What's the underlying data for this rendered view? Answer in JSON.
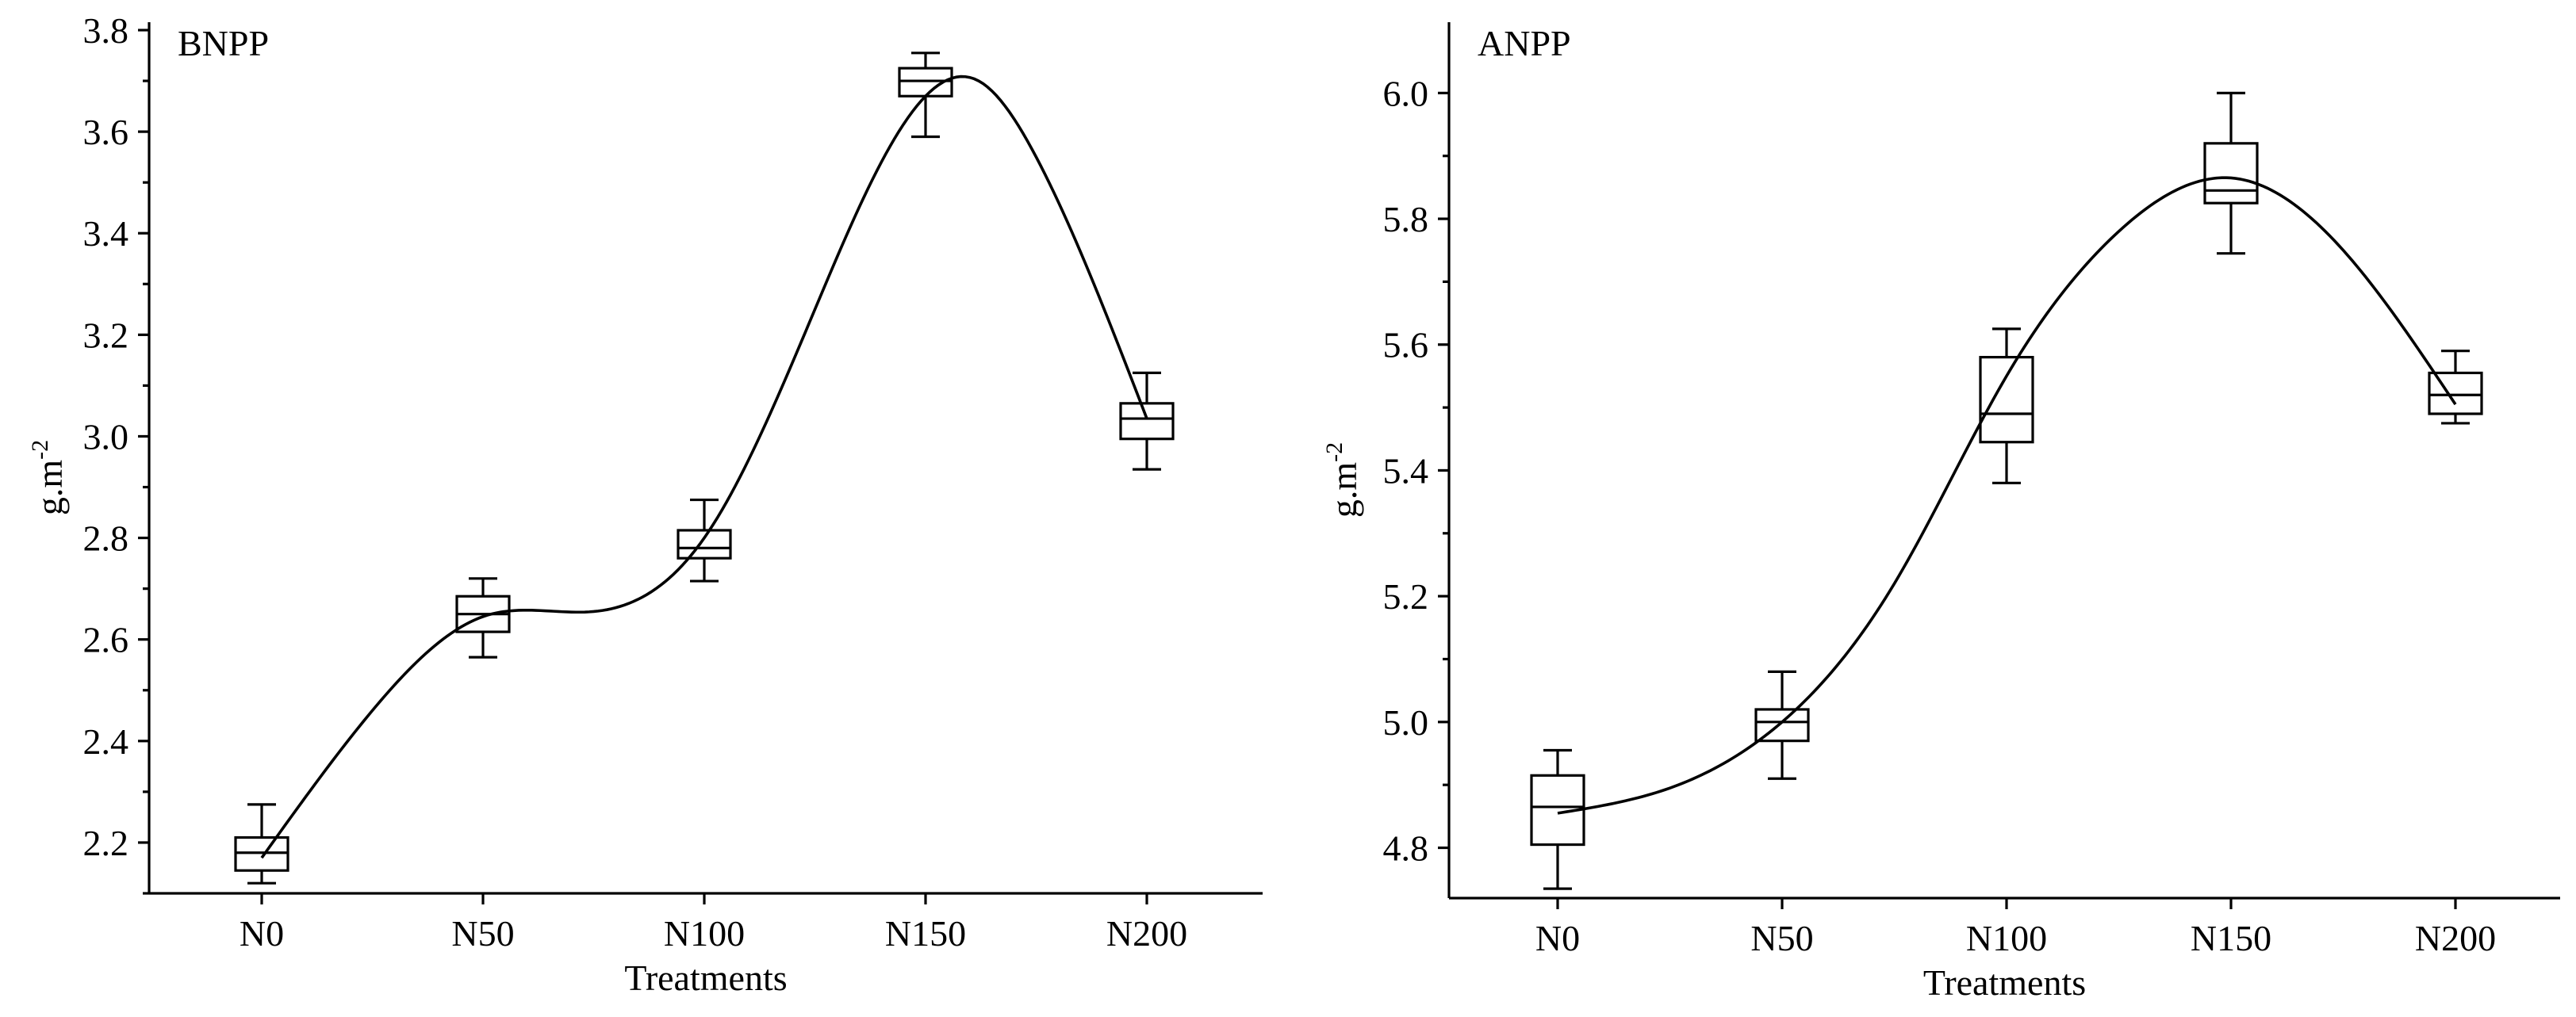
{
  "chart_data": [
    {
      "type": "box",
      "title": "BNPP",
      "xlabel": "Treatments",
      "ylabel": "g.m",
      "ylabel_sup": "-2",
      "categories": [
        "N0",
        "N50",
        "N100",
        "N150",
        "N200"
      ],
      "ylim": [
        2.1,
        3.8
      ],
      "yticks": [
        2.2,
        2.4,
        2.6,
        2.8,
        3.0,
        3.2,
        3.4,
        3.6,
        3.8
      ],
      "ytick_labels": [
        "2.2",
        "2.4",
        "2.6",
        "2.8",
        "3.0",
        "3.2",
        "3.4",
        "3.6",
        "3.8"
      ],
      "boxes": [
        {
          "min": 2.12,
          "q1": 2.145,
          "median": 2.18,
          "q3": 2.21,
          "max": 2.275
        },
        {
          "min": 2.565,
          "q1": 2.615,
          "median": 2.65,
          "q3": 2.685,
          "max": 2.72
        },
        {
          "min": 2.715,
          "q1": 2.76,
          "median": 2.78,
          "q3": 2.815,
          "max": 2.875
        },
        {
          "min": 3.59,
          "q1": 3.67,
          "median": 3.7,
          "q3": 3.725,
          "max": 3.755
        },
        {
          "min": 2.935,
          "q1": 2.995,
          "median": 3.035,
          "q3": 3.065,
          "max": 3.125
        }
      ],
      "fit_curve": {
        "x": [
          0,
          25,
          50,
          75,
          100,
          125,
          150,
          162,
          175,
          200
        ],
        "y": [
          2.17,
          2.46,
          2.645,
          2.655,
          2.8,
          3.25,
          3.67,
          3.7,
          3.55,
          3.035
        ]
      }
    },
    {
      "type": "box",
      "title": "ANPP",
      "xlabel": "Treatments",
      "ylabel": "g.m",
      "ylabel_sup": "-2",
      "categories": [
        "N0",
        "N50",
        "N100",
        "N150",
        "N200"
      ],
      "ylim": [
        4.72,
        6.1
      ],
      "yticks": [
        4.8,
        5.0,
        5.2,
        5.4,
        5.6,
        5.8,
        6.0
      ],
      "ytick_labels": [
        "4.8",
        "5.0",
        "5.2",
        "5.4",
        "5.6",
        "5.8",
        "6.0"
      ],
      "boxes": [
        {
          "min": 4.735,
          "q1": 4.805,
          "median": 4.865,
          "q3": 4.915,
          "max": 4.955
        },
        {
          "min": 4.91,
          "q1": 4.97,
          "median": 5.0,
          "q3": 5.02,
          "max": 5.08
        },
        {
          "min": 5.38,
          "q1": 5.445,
          "median": 5.49,
          "q3": 5.58,
          "max": 5.625
        },
        {
          "min": 5.745,
          "q1": 5.825,
          "median": 5.845,
          "q3": 5.92,
          "max": 6.0
        },
        {
          "min": 5.475,
          "q1": 5.49,
          "median": 5.52,
          "q3": 5.555,
          "max": 5.59
        }
      ],
      "fit_curve": {
        "x": [
          0,
          25,
          50,
          75,
          100,
          125,
          150,
          175,
          200
        ],
        "y": [
          4.855,
          4.895,
          5.0,
          5.22,
          5.55,
          5.78,
          5.865,
          5.75,
          5.505
        ]
      }
    }
  ]
}
